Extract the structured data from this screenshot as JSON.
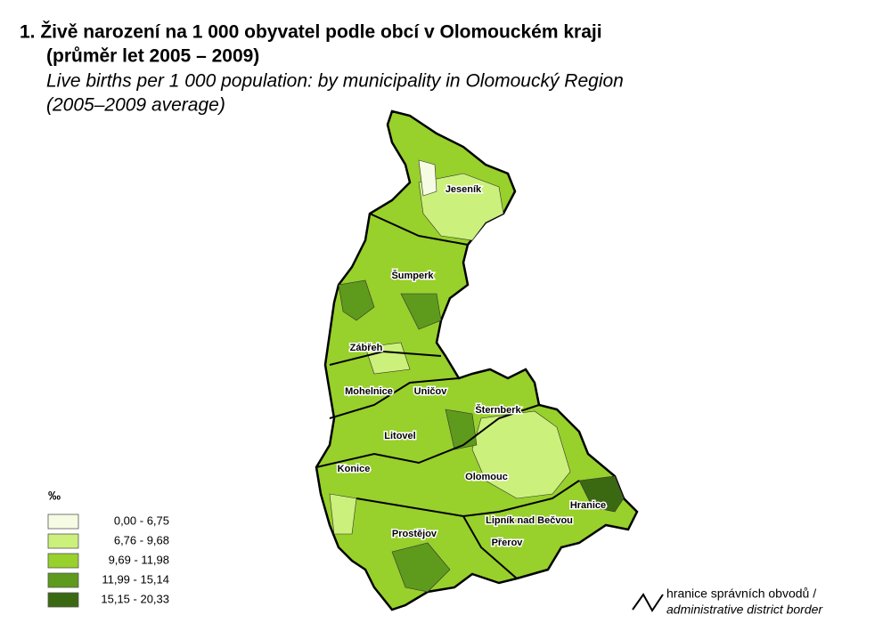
{
  "title": {
    "cs_line1": "1. Živě narození na 1 000 obyvatel podle obcí v Olomouckém kraji",
    "cs_line2": "(průměr let 2005 – 2009)",
    "en_line1": "Live births per 1 000 population: by municipality in Olomoucký Region",
    "en_line2": "(2005–2009 average)"
  },
  "legend": {
    "unit": "‰",
    "items": [
      {
        "label": "0,00 -   6,75",
        "color": "#f6fce4"
      },
      {
        "label": "6,76 -   9,68",
        "color": "#ccf07c"
      },
      {
        "label": "9,69 - 11,98",
        "color": "#98d02c"
      },
      {
        "label": "11,99 - 15,14",
        "color": "#5e9a1c"
      },
      {
        "label": "15,15 - 20,33",
        "color": "#3b6912"
      }
    ]
  },
  "border_note": {
    "cs": "hranice správních obvodů /",
    "en": "administrative district border"
  },
  "towns": [
    "Jeseník",
    "Šumperk",
    "Zábřeh",
    "Mohelnice",
    "Uničov",
    "Šternberk",
    "Litovel",
    "Konice",
    "Olomouc",
    "Hranice",
    "Lipník nad Bečvou",
    "Prostějov",
    "Přerov"
  ]
}
